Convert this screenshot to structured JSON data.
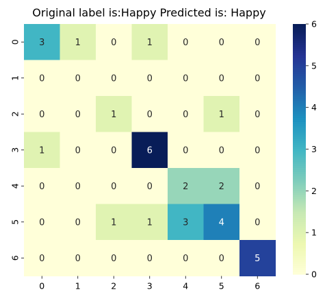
{
  "chart_data": {
    "type": "heatmap",
    "title": "Original label is:Happy Predicted is: Happy",
    "x_tick_labels": [
      "0",
      "1",
      "2",
      "3",
      "4",
      "5",
      "6"
    ],
    "y_tick_labels": [
      "0",
      "1",
      "2",
      "3",
      "4",
      "5",
      "6"
    ],
    "values": [
      [
        3,
        1,
        0,
        1,
        0,
        0,
        0
      ],
      [
        0,
        0,
        0,
        0,
        0,
        0,
        0
      ],
      [
        0,
        0,
        1,
        0,
        0,
        1,
        0
      ],
      [
        1,
        0,
        0,
        6,
        0,
        0,
        0
      ],
      [
        0,
        0,
        0,
        0,
        2,
        2,
        0
      ],
      [
        0,
        0,
        1,
        1,
        3,
        4,
        0
      ],
      [
        0,
        0,
        0,
        0,
        0,
        0,
        5
      ]
    ],
    "colorbar": {
      "colormap": "YlGnBu",
      "vmin": 0,
      "vmax": 6,
      "tick_labels": [
        "0",
        "1",
        "2",
        "3",
        "4",
        "5",
        "6"
      ]
    },
    "annotations": true
  }
}
